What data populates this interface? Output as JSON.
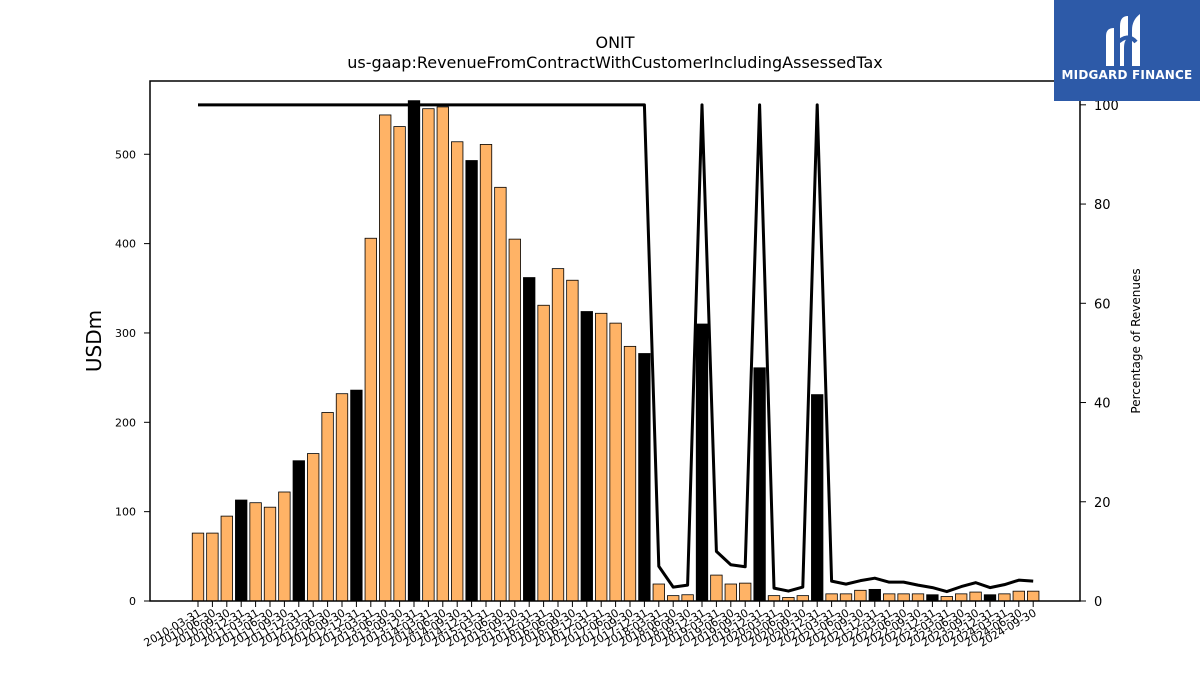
{
  "chart_data": {
    "type": "bar",
    "title": "ONIT",
    "subtitle": "us-gaap:RevenueFromContractWithCustomerIncludingAssessedTax",
    "ylabel": "USDm",
    "y2label": "Percentage of Revenues",
    "ylim": [
      0,
      582
    ],
    "y2lim": [
      0,
      104.8
    ],
    "yticks": [
      0,
      100,
      200,
      300,
      400,
      500
    ],
    "y2ticks": [
      0,
      20,
      40,
      60,
      80,
      100
    ],
    "grid": false,
    "colors": {
      "quarter": "#ffb366",
      "annual": "#000000",
      "line": "#000000"
    },
    "categories": [
      "2010-03-31",
      "2010-06-30",
      "2010-09-30",
      "2010-12-31",
      "2011-03-31",
      "2011-06-30",
      "2011-09-30",
      "2011-12-31",
      "2012-03-31",
      "2012-06-30",
      "2012-09-30",
      "2012-12-31",
      "2013-03-31",
      "2013-06-30",
      "2013-09-30",
      "2013-12-31",
      "2014-03-31",
      "2014-06-30",
      "2014-09-30",
      "2014-12-31",
      "2015-03-31",
      "2015-06-30",
      "2015-09-30",
      "2015-12-31",
      "2016-03-31",
      "2016-06-30",
      "2016-09-30",
      "2016-12-31",
      "2017-03-31",
      "2017-06-30",
      "2017-09-30",
      "2017-12-31",
      "2018-03-31",
      "2018-06-30",
      "2018-09-30",
      "2018-12-31",
      "2019-03-31",
      "2019-06-30",
      "2019-09-30",
      "2019-12-31",
      "2020-03-31",
      "2020-06-30",
      "2020-09-30",
      "2020-12-31",
      "2021-03-31",
      "2021-06-30",
      "2021-09-30",
      "2021-12-31",
      "2022-03-31",
      "2022-06-30",
      "2022-09-30",
      "2022-12-31",
      "2023-03-31",
      "2023-06-30",
      "2023-09-30",
      "2023-12-31",
      "2024-03-31",
      "2024-06-30",
      "2024-09-30"
    ],
    "values": [
      76,
      76,
      95,
      113,
      110,
      105,
      122,
      157,
      165,
      211,
      232,
      236,
      406,
      544,
      531,
      560,
      551,
      553,
      514,
      493,
      511,
      463,
      405,
      362,
      331,
      372,
      359,
      324,
      322,
      311,
      285,
      277,
      19,
      6,
      7,
      310,
      29,
      19,
      20,
      261,
      6,
      4,
      6,
      231,
      8,
      8,
      12,
      13,
      8,
      8,
      8,
      7,
      5,
      8,
      10,
      7,
      8,
      11,
      11
    ],
    "annual_flags": [
      0,
      0,
      0,
      1,
      0,
      0,
      0,
      1,
      0,
      0,
      0,
      1,
      0,
      0,
      0,
      1,
      0,
      0,
      0,
      1,
      0,
      0,
      0,
      1,
      0,
      0,
      0,
      1,
      0,
      0,
      0,
      1,
      0,
      0,
      0,
      1,
      0,
      0,
      0,
      1,
      0,
      0,
      0,
      1,
      0,
      0,
      0,
      1,
      0,
      0,
      0,
      1,
      0,
      0,
      0,
      1,
      0,
      0,
      0
    ],
    "series": [
      {
        "axis": "secondary",
        "values": [
          100,
          100,
          100,
          100,
          100,
          100,
          100,
          100,
          100,
          100,
          100,
          100,
          100,
          100,
          100,
          100,
          100,
          100,
          100,
          100,
          100,
          100,
          100,
          100,
          100,
          100,
          100,
          100,
          100,
          100,
          100,
          100,
          7,
          2.8,
          3.2,
          100,
          10,
          7.3,
          6.9,
          100,
          2.6,
          2,
          2.8,
          100,
          4,
          3.4,
          4.1,
          4.6,
          3.8,
          3.8,
          3.2,
          2.7,
          1.9,
          2.9,
          3.7,
          2.7,
          3.3,
          4.2,
          4
        ]
      }
    ],
    "xtick_labels": [
      "2010-03-31",
      "2010-06-30",
      "2010-09-30",
      "2010-12-31",
      "2011-03-31",
      "2011-06-30",
      "2011-09-30",
      "2011-12-31",
      "2012-03-31",
      "2012-06-30",
      "2012-09-30",
      "2012-12-31",
      "2013-03-31",
      "2013-06-30",
      "2013-09-30",
      "2013-12-31",
      "2014-03-31",
      "2014-06-30",
      "2014-09-30",
      "2014-12-31",
      "2015-03-31",
      "2015-06-30",
      "2015-09-30",
      "2015-12-31",
      "2016-03-31",
      "2016-06-30",
      "2016-09-30",
      "2016-12-31",
      "2017-03-31",
      "2017-06-30",
      "2017-09-30",
      "2017-12-31",
      "2018-03-31",
      "2018-06-30",
      "2018-09-30",
      "2018-12-31",
      "2019-03-31",
      "2019-06-30",
      "2019-09-30",
      "2019-12-31",
      "2020-03-31",
      "2020-06-30",
      "2020-09-30",
      "2020-12-31",
      "2021-03-31",
      "2021-06-30",
      "2021-09-30",
      "2021-12-31",
      "2022-03-31",
      "2022-06-30",
      "2022-09-30",
      "2022-12-31",
      "2023-03-31",
      "2023-06-30",
      "2023-09-30",
      "2023-12-31",
      "2024-03-31",
      "2024-06-30",
      "2024-09-30"
    ]
  },
  "logo": {
    "text": "MIDGARD FINANCE",
    "icon": "midgard-logo-icon",
    "background": "#2d5aa8"
  }
}
